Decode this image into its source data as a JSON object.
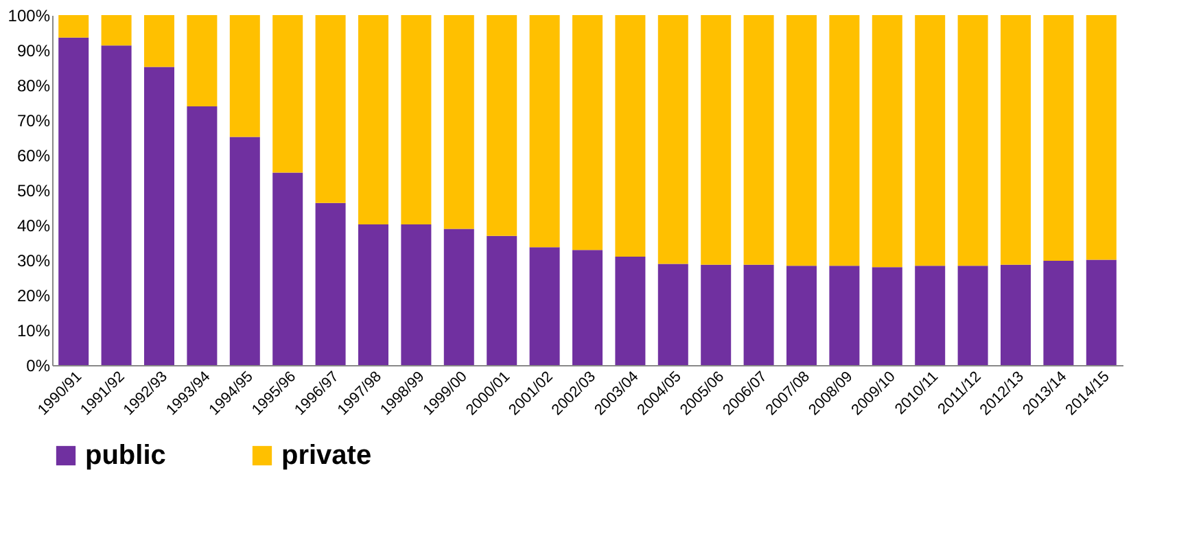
{
  "chart_data": {
    "type": "bar",
    "stacked": true,
    "categories": [
      "1990/91",
      "1991/92",
      "1992/93",
      "1993/94",
      "1994/95",
      "1995/96",
      "1996/97",
      "1997/98",
      "1998/99",
      "1999/00",
      "2000/01",
      "2001/02",
      "2002/03",
      "2003/04",
      "2004/05",
      "2005/06",
      "2006/07",
      "2007/08",
      "2008/09",
      "2009/10",
      "2010/11",
      "2011/12",
      "2012/13",
      "2013/14",
      "2014/15"
    ],
    "series": [
      {
        "name": "public",
        "color": "#7030a0",
        "values": [
          93.6,
          91.3,
          85.2,
          73.9,
          65.2,
          55.0,
          46.3,
          40.2,
          40.2,
          38.9,
          36.9,
          33.7,
          32.9,
          31.0,
          28.9,
          28.7,
          28.7,
          28.4,
          28.4,
          28.0,
          28.4,
          28.4,
          28.7,
          29.8,
          30.1
        ]
      },
      {
        "name": "private",
        "color": "#ffc000",
        "values": [
          6.4,
          8.7,
          14.8,
          26.1,
          34.8,
          45.0,
          53.7,
          59.8,
          59.8,
          61.1,
          63.1,
          66.3,
          67.1,
          69.0,
          71.1,
          71.3,
          71.3,
          71.6,
          71.6,
          72.0,
          71.6,
          71.6,
          71.3,
          70.2,
          69.9
        ]
      }
    ],
    "ylim": [
      0,
      100
    ],
    "yticks": [
      {
        "value": 0,
        "label": "0%"
      },
      {
        "value": 10,
        "label": "10%"
      },
      {
        "value": 20,
        "label": "20%"
      },
      {
        "value": 30,
        "label": "30%"
      },
      {
        "value": 40,
        "label": "40%"
      },
      {
        "value": 50,
        "label": "50%"
      },
      {
        "value": 60,
        "label": "60%"
      },
      {
        "value": 70,
        "label": "70%"
      },
      {
        "value": 80,
        "label": "80%"
      },
      {
        "value": 90,
        "label": "90%"
      },
      {
        "value": 100,
        "label": "100%"
      }
    ],
    "grid": false,
    "legend": "bottom"
  }
}
